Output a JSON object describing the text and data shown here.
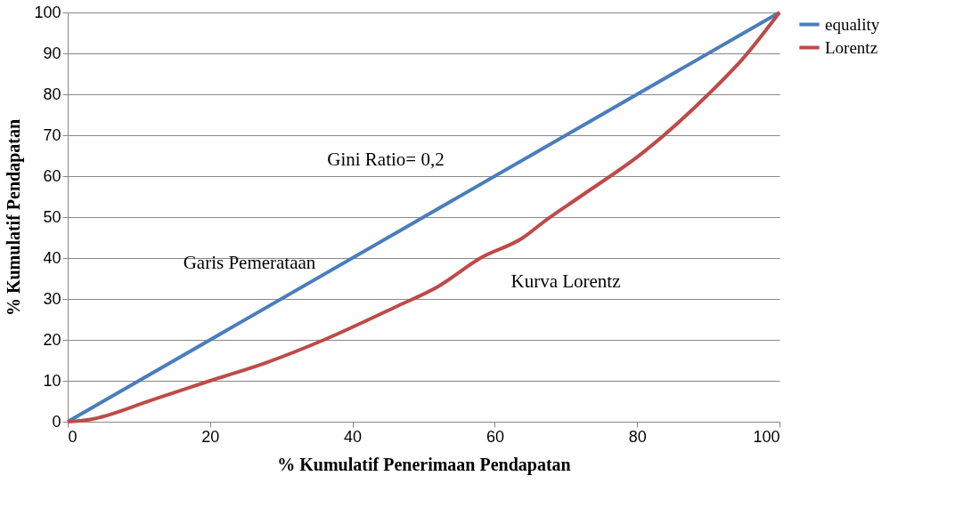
{
  "chart_data": {
    "type": "line",
    "xlabel": "% Kumulatif Penerimaan Pendapatan",
    "ylabel": "% Kumulatif Pendapatan",
    "xlim": [
      0,
      100
    ],
    "xticks": [
      0,
      20,
      40,
      60,
      80,
      100
    ],
    "ylim": [
      0,
      100
    ],
    "yticks": [
      0,
      10,
      20,
      30,
      40,
      50,
      60,
      70,
      80,
      90,
      100
    ],
    "grid": "y",
    "legend": "right",
    "marker": "none",
    "line_style": "solid",
    "series": [
      {
        "name": "equality",
        "color": "#4a7ebb",
        "x": [
          0,
          100
        ],
        "values": [
          0,
          100
        ]
      },
      {
        "name": "Lorentz",
        "color": "#be4b48",
        "x": [
          0,
          3,
          12,
          20,
          28,
          36,
          46,
          52,
          58,
          64,
          67,
          72,
          81,
          90,
          95,
          100
        ],
        "values": [
          0,
          0.5,
          5.4,
          10,
          14.5,
          20,
          28,
          33,
          40,
          45,
          49,
          55,
          66,
          80,
          89,
          100
        ]
      }
    ],
    "annotations": [
      "Gini Ratio= 0,2",
      "Garis Pemerataan",
      "Kurva Lorentz"
    ]
  }
}
